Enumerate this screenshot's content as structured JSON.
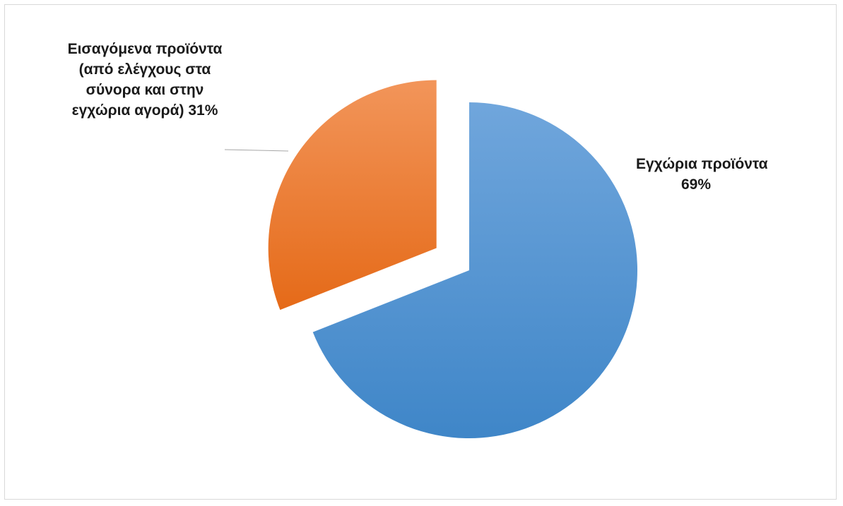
{
  "chart_data": {
    "type": "pie",
    "categories": [
      "Εγχώρια προϊόντα",
      "Εισαγόμενα προϊόντα (από ελέγχους στα σύνορα και στην εγχώρια αγορά)"
    ],
    "values": [
      69,
      31
    ],
    "unit": "%",
    "colors": [
      "#5b9bd5",
      "#ed7d31"
    ],
    "exploded": "Εισαγόμενα προϊόντα (από ελέγχους στα σύνορα και στην εγχώρια αγορά)",
    "legend": "none",
    "labels": {
      "domestic": {
        "line1": "Εγχώρια προϊόντα",
        "line2": "69%"
      },
      "imported": {
        "line1": "Εισαγόμενα προϊόντα",
        "line2": "(από ελέγχους στα",
        "line3": "σύνορα και στην",
        "line4": "εγχώρια αγορά) 31%"
      }
    }
  }
}
